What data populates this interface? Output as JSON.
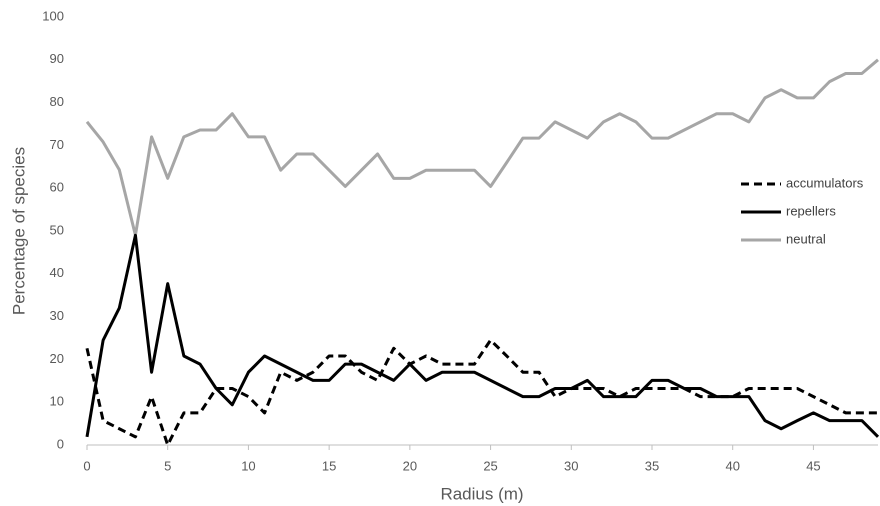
{
  "chart_data": {
    "type": "line",
    "x_label": "Radius (m)",
    "y_label": "Percentage of species",
    "x": [
      0,
      1,
      2,
      3,
      4,
      5,
      6,
      7,
      8,
      9,
      10,
      11,
      12,
      13,
      14,
      15,
      16,
      17,
      18,
      19,
      20,
      21,
      22,
      23,
      24,
      25,
      26,
      27,
      28,
      29,
      30,
      31,
      32,
      33,
      34,
      35,
      36,
      37,
      38,
      39,
      40,
      41,
      42,
      43,
      44,
      45,
      46,
      47,
      48,
      49
    ],
    "xlim": [
      0,
      49
    ],
    "xticks": [
      0,
      5,
      10,
      15,
      20,
      25,
      30,
      35,
      40,
      45
    ],
    "ylim": [
      0,
      100
    ],
    "yticks": [
      0,
      10,
      20,
      30,
      40,
      50,
      60,
      70,
      80,
      90,
      100
    ],
    "grid": false,
    "legend": "right",
    "series": [
      {
        "name": "accumulators",
        "color": "#000000",
        "dash": "dashed",
        "values": [
          22.6,
          5.7,
          3.8,
          1.9,
          11.3,
          0,
          7.5,
          7.5,
          13.2,
          13.2,
          11.3,
          7.5,
          17,
          15.1,
          17,
          20.8,
          20.8,
          17,
          15.1,
          22.6,
          18.9,
          20.8,
          18.9,
          18.9,
          18.9,
          24.5,
          20.8,
          17,
          17,
          11.3,
          13.2,
          13.2,
          13.2,
          11.3,
          13.2,
          13.2,
          13.2,
          13.2,
          11.3,
          11.3,
          11.3,
          13.2,
          13.2,
          13.2,
          13.2,
          11.3,
          9.4,
          7.5,
          7.5,
          7.5
        ]
      },
      {
        "name": "repellers",
        "color": "#000000",
        "dash": "solid",
        "values": [
          1.9,
          24.5,
          32,
          49,
          17,
          37.7,
          20.8,
          18.9,
          13.2,
          9.4,
          17,
          20.8,
          18.9,
          17,
          15.1,
          15.1,
          18.9,
          18.9,
          17,
          15.1,
          18.9,
          15.1,
          17,
          17,
          17,
          15.1,
          13.2,
          11.3,
          11.3,
          13.2,
          13.2,
          15.1,
          11.3,
          11.3,
          11.3,
          15.1,
          15.1,
          13.2,
          13.2,
          11.3,
          11.3,
          11.3,
          5.7,
          3.8,
          5.7,
          7.5,
          5.7,
          5.7,
          5.7,
          1.9
        ]
      },
      {
        "name": "neutral",
        "color": "#a6a6a6",
        "dash": "solid",
        "values": [
          75.5,
          70.8,
          64.3,
          49,
          72,
          62.3,
          72,
          73.6,
          73.6,
          77.4,
          72,
          72,
          64.2,
          68,
          68,
          64.2,
          60.4,
          64.2,
          68,
          62.3,
          62.3,
          64.2,
          64.2,
          64.2,
          64.2,
          60.4,
          66,
          71.7,
          71.7,
          75.5,
          73.6,
          71.7,
          75.5,
          77.4,
          75.5,
          71.7,
          71.7,
          73.6,
          75.5,
          77.4,
          77.4,
          75.5,
          81.1,
          83,
          81.1,
          81.1,
          84.9,
          86.8,
          86.8,
          90
        ]
      }
    ]
  }
}
